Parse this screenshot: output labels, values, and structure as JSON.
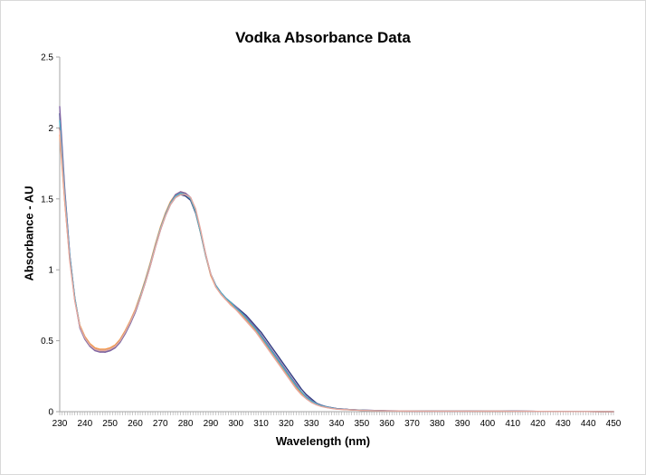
{
  "chart_data": {
    "type": "line",
    "title": "Vodka Absorbance Data",
    "xlabel": "Wavelength (nm)",
    "ylabel": "Absorbance - AU",
    "xlim": [
      230,
      450
    ],
    "ylim": [
      0,
      2.5
    ],
    "x_ticks": [
      230,
      240,
      250,
      260,
      270,
      280,
      290,
      300,
      310,
      320,
      330,
      340,
      350,
      360,
      370,
      380,
      390,
      400,
      410,
      420,
      430,
      440,
      450
    ],
    "y_ticks": [
      0,
      0.5,
      1,
      1.5,
      2,
      2.5
    ],
    "y_tick_labels": [
      "0",
      "0.5",
      "1",
      "1.5",
      "2",
      "2.5"
    ],
    "grid": false,
    "legend": "none",
    "x": [
      230,
      232,
      234,
      236,
      238,
      240,
      242,
      244,
      246,
      248,
      250,
      252,
      254,
      256,
      258,
      260,
      262,
      264,
      266,
      268,
      270,
      272,
      274,
      276,
      278,
      280,
      282,
      284,
      286,
      288,
      290,
      292,
      294,
      296,
      298,
      300,
      302,
      304,
      306,
      308,
      310,
      312,
      314,
      316,
      318,
      320,
      322,
      324,
      326,
      328,
      330,
      332,
      334,
      336,
      338,
      340,
      345,
      350,
      355,
      360,
      370,
      380,
      390,
      400,
      405,
      410,
      420,
      430,
      440,
      450
    ],
    "series": [
      {
        "color": "#2e3a80",
        "values": [
          2.1,
          1.55,
          1.1,
          0.8,
          0.6,
          0.52,
          0.47,
          0.44,
          0.43,
          0.42,
          0.43,
          0.45,
          0.49,
          0.55,
          0.62,
          0.7,
          0.8,
          0.91,
          1.03,
          1.16,
          1.28,
          1.38,
          1.46,
          1.51,
          1.53,
          1.52,
          1.49,
          1.4,
          1.26,
          1.1,
          0.97,
          0.89,
          0.84,
          0.8,
          0.77,
          0.74,
          0.71,
          0.68,
          0.64,
          0.6,
          0.56,
          0.51,
          0.46,
          0.41,
          0.36,
          0.31,
          0.26,
          0.21,
          0.16,
          0.12,
          0.09,
          0.06,
          0.045,
          0.035,
          0.028,
          0.022,
          0.015,
          0.011,
          0.008,
          0.006,
          0.004,
          0.003,
          0.003,
          0.004,
          0.004,
          0.003,
          0.002,
          0.001,
          0.001,
          0.0
        ]
      },
      {
        "color": "#c0504d",
        "values": [
          2.0,
          1.5,
          1.08,
          0.79,
          0.6,
          0.52,
          0.47,
          0.44,
          0.43,
          0.43,
          0.44,
          0.46,
          0.5,
          0.56,
          0.63,
          0.71,
          0.81,
          0.92,
          1.04,
          1.17,
          1.29,
          1.39,
          1.47,
          1.52,
          1.54,
          1.53,
          1.5,
          1.41,
          1.26,
          1.1,
          0.97,
          0.88,
          0.83,
          0.79,
          0.76,
          0.73,
          0.7,
          0.66,
          0.62,
          0.58,
          0.53,
          0.48,
          0.43,
          0.38,
          0.33,
          0.28,
          0.23,
          0.18,
          0.14,
          0.1,
          0.075,
          0.055,
          0.04,
          0.032,
          0.026,
          0.02,
          0.014,
          0.01,
          0.007,
          0.005,
          0.004,
          0.003,
          0.003,
          0.004,
          0.004,
          0.003,
          0.002,
          0.001,
          0.001,
          0.0
        ]
      },
      {
        "color": "#f79646",
        "values": [
          1.95,
          1.48,
          1.07,
          0.79,
          0.61,
          0.53,
          0.48,
          0.45,
          0.44,
          0.44,
          0.45,
          0.47,
          0.51,
          0.57,
          0.64,
          0.72,
          0.82,
          0.93,
          1.05,
          1.18,
          1.3,
          1.4,
          1.48,
          1.53,
          1.55,
          1.54,
          1.5,
          1.41,
          1.26,
          1.1,
          0.96,
          0.88,
          0.83,
          0.79,
          0.76,
          0.72,
          0.69,
          0.65,
          0.61,
          0.57,
          0.52,
          0.47,
          0.42,
          0.37,
          0.32,
          0.27,
          0.22,
          0.17,
          0.13,
          0.095,
          0.07,
          0.05,
          0.038,
          0.03,
          0.024,
          0.019,
          0.013,
          0.009,
          0.007,
          0.005,
          0.004,
          0.003,
          0.003,
          0.004,
          0.004,
          0.003,
          0.002,
          0.001,
          0.001,
          0.0
        ]
      },
      {
        "color": "#8064a2",
        "values": [
          2.15,
          1.57,
          1.1,
          0.79,
          0.59,
          0.51,
          0.46,
          0.43,
          0.42,
          0.42,
          0.43,
          0.45,
          0.49,
          0.55,
          0.62,
          0.7,
          0.8,
          0.91,
          1.03,
          1.16,
          1.28,
          1.39,
          1.47,
          1.53,
          1.55,
          1.54,
          1.51,
          1.42,
          1.27,
          1.11,
          0.97,
          0.89,
          0.84,
          0.8,
          0.77,
          0.74,
          0.7,
          0.67,
          0.63,
          0.59,
          0.54,
          0.49,
          0.44,
          0.39,
          0.34,
          0.29,
          0.24,
          0.19,
          0.14,
          0.105,
          0.08,
          0.058,
          0.043,
          0.034,
          0.027,
          0.021,
          0.015,
          0.01,
          0.008,
          0.006,
          0.004,
          0.003,
          0.003,
          0.005,
          0.005,
          0.004,
          0.002,
          0.001,
          0.001,
          0.0
        ]
      },
      {
        "color": "#4bacc6",
        "values": [
          2.05,
          1.53,
          1.09,
          0.8,
          0.6,
          0.52,
          0.47,
          0.44,
          0.43,
          0.43,
          0.44,
          0.46,
          0.5,
          0.56,
          0.63,
          0.71,
          0.81,
          0.92,
          1.04,
          1.17,
          1.29,
          1.39,
          1.47,
          1.52,
          1.54,
          1.53,
          1.5,
          1.41,
          1.26,
          1.1,
          0.97,
          0.89,
          0.84,
          0.8,
          0.77,
          0.73,
          0.7,
          0.66,
          0.62,
          0.58,
          0.53,
          0.48,
          0.43,
          0.38,
          0.33,
          0.28,
          0.23,
          0.18,
          0.14,
          0.1,
          0.075,
          0.055,
          0.041,
          0.033,
          0.026,
          0.02,
          0.014,
          0.01,
          0.007,
          0.005,
          0.004,
          0.003,
          0.003,
          0.004,
          0.004,
          0.003,
          0.002,
          0.001,
          0.001,
          0.0
        ]
      },
      {
        "color": "#e6a8a0",
        "values": [
          1.98,
          1.49,
          1.06,
          0.78,
          0.6,
          0.52,
          0.47,
          0.44,
          0.43,
          0.43,
          0.44,
          0.46,
          0.5,
          0.56,
          0.63,
          0.71,
          0.8,
          0.91,
          1.03,
          1.16,
          1.28,
          1.38,
          1.46,
          1.51,
          1.53,
          1.53,
          1.51,
          1.43,
          1.28,
          1.11,
          0.97,
          0.88,
          0.83,
          0.79,
          0.75,
          0.72,
          0.68,
          0.64,
          0.6,
          0.56,
          0.51,
          0.46,
          0.41,
          0.36,
          0.31,
          0.26,
          0.21,
          0.16,
          0.12,
          0.09,
          0.065,
          0.048,
          0.036,
          0.029,
          0.023,
          0.018,
          0.013,
          0.009,
          0.007,
          0.005,
          0.004,
          0.003,
          0.003,
          0.004,
          0.004,
          0.003,
          0.002,
          0.001,
          0.001,
          0.0
        ]
      }
    ]
  }
}
